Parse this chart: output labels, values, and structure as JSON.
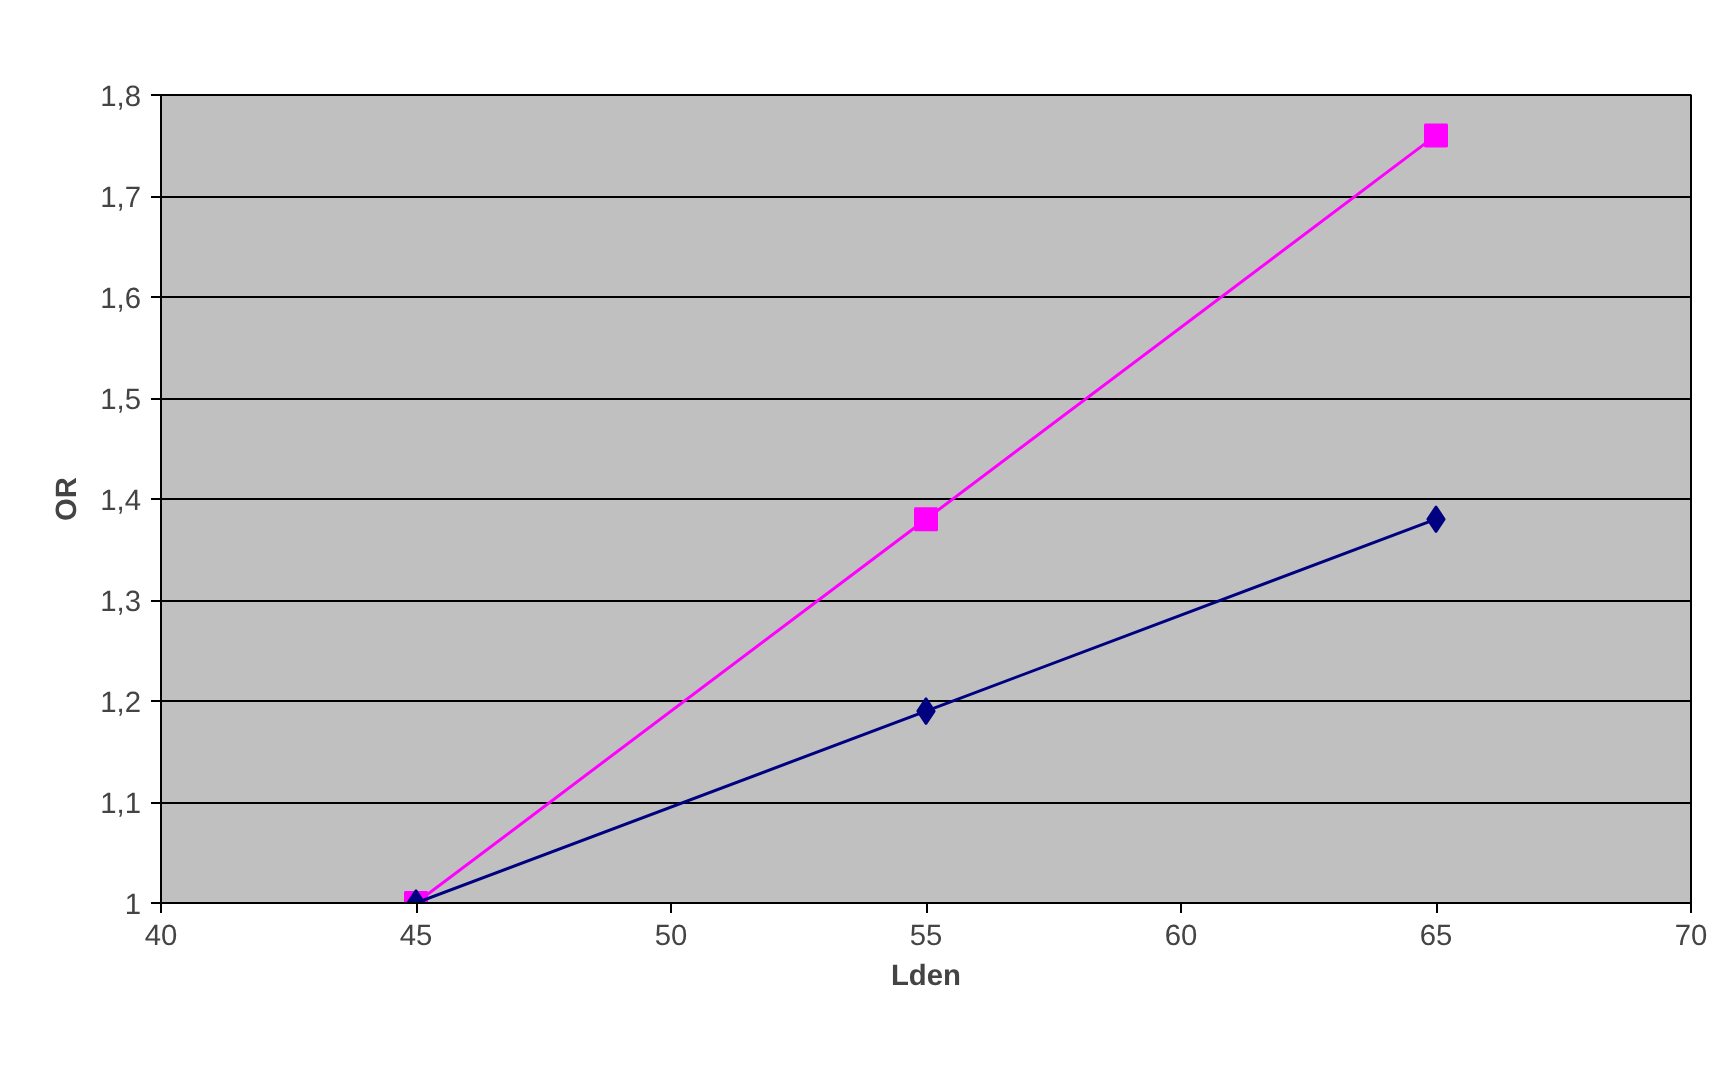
{
  "chart_data": {
    "type": "line",
    "xlabel": "Lden",
    "ylabel": "OR",
    "x": [
      45,
      55,
      65
    ],
    "series": [
      {
        "color": "#000080",
        "values": [
          1.0,
          1.19,
          1.38
        ],
        "marker": "diamond"
      },
      {
        "color": "#ff00ff",
        "values": [
          1.0,
          1.38,
          1.76
        ],
        "marker": "square"
      }
    ],
    "xlim": [
      40,
      70
    ],
    "xticks": [
      40,
      45,
      50,
      55,
      60,
      65,
      70
    ],
    "ylim": [
      1,
      1.8
    ],
    "yticks": [
      1,
      {
        "value": 1.1,
        "label": "1,1"
      },
      {
        "value": 1.2,
        "label": "1,2"
      },
      {
        "value": 1.3,
        "label": "1,3"
      },
      {
        "value": 1.4,
        "label": "1,4"
      },
      {
        "value": 1.5,
        "label": "1,5"
      },
      {
        "value": 1.6,
        "label": "1,6"
      },
      {
        "value": 1.7,
        "label": "1,7"
      },
      {
        "value": 1.8,
        "label": "1,8"
      }
    ],
    "grid": "y",
    "line_style": "solid"
  }
}
